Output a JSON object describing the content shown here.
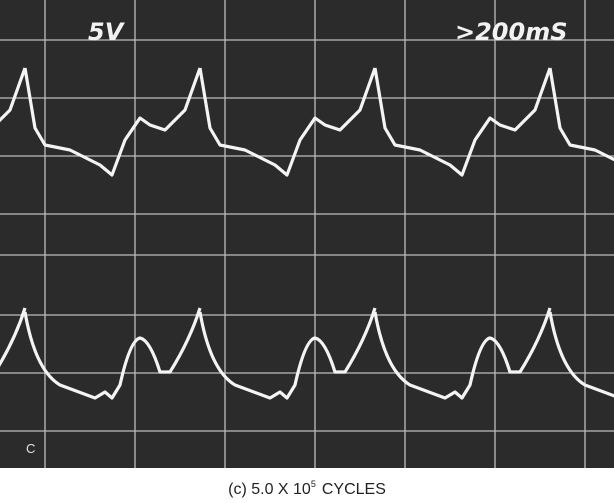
{
  "screen": {
    "volts_label": "5V",
    "time_label": ">200mS",
    "corner_label": "C"
  },
  "caption": {
    "text": "(c) 5.0 X 10",
    "exponent": "5",
    "suffix": "CYCLES"
  }
}
